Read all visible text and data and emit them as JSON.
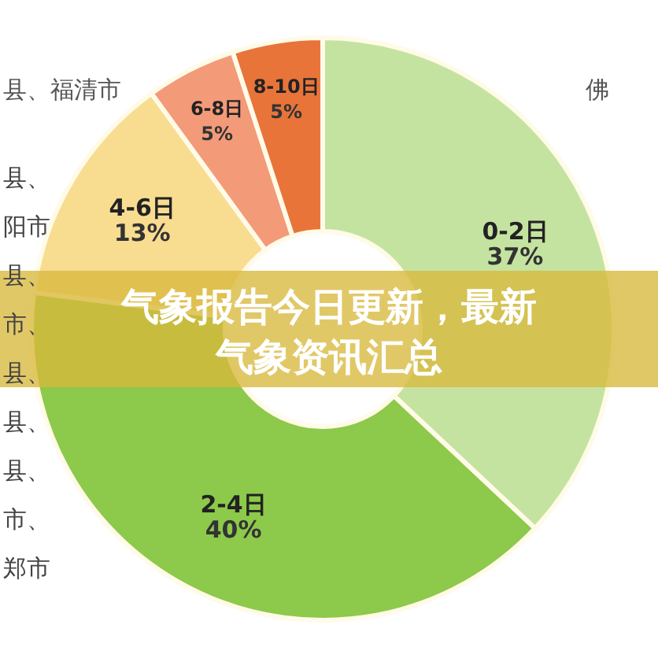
{
  "chart_data": {
    "type": "donut",
    "title": "气象报告今日更新，最新气象资讯汇总",
    "categories": [
      "0-2日",
      "2-4日",
      "4-6日",
      "6-8日",
      "8-10日"
    ],
    "values": [
      37,
      40,
      13,
      5,
      5
    ],
    "colors": [
      "#c5e3a0",
      "#8dc94a",
      "#f8dc90",
      "#f39a78",
      "#e8743a"
    ],
    "value_labels": [
      "37%",
      "40%",
      "13%",
      "5%",
      "5%"
    ],
    "annotations": [
      "县、福清市",
      "佛",
      "县、",
      "阳市",
      "县、",
      "市、",
      "县、",
      "县、",
      "县、",
      "市、",
      "郑市"
    ]
  }
}
